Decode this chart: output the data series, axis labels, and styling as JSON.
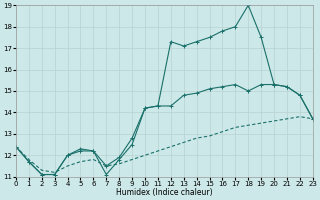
{
  "xlabel": "Humidex (Indice chaleur)",
  "bg_color": "#cce8e8",
  "grid_color": "#b8d0d0",
  "line_color": "#1a706a",
  "xlim": [
    0,
    23
  ],
  "ylim": [
    11,
    19
  ],
  "xticks": [
    0,
    1,
    2,
    3,
    4,
    5,
    6,
    7,
    8,
    9,
    10,
    11,
    12,
    13,
    14,
    15,
    16,
    17,
    18,
    19,
    20,
    21,
    22,
    23
  ],
  "yticks": [
    11,
    12,
    13,
    14,
    15,
    16,
    17,
    18,
    19
  ],
  "line_jagged_x": [
    0,
    1,
    2,
    3,
    4,
    5,
    6,
    7,
    8,
    9,
    10,
    11,
    12,
    13,
    14,
    15,
    16,
    17,
    18,
    19,
    20,
    21,
    22,
    23
  ],
  "line_jagged_y": [
    12.4,
    11.7,
    11.1,
    11.1,
    12.0,
    12.3,
    12.2,
    11.1,
    11.8,
    12.5,
    14.2,
    14.3,
    17.3,
    17.1,
    17.3,
    17.5,
    17.8,
    18.0,
    19.0,
    17.5,
    15.3,
    15.2,
    14.8,
    13.7
  ],
  "line_mid_x": [
    0,
    1,
    2,
    3,
    4,
    5,
    6,
    7,
    8,
    9,
    10,
    11,
    12,
    13,
    14,
    15,
    16,
    17,
    18,
    19,
    20,
    21,
    22,
    23
  ],
  "line_mid_y": [
    12.4,
    11.7,
    11.1,
    11.1,
    12.0,
    12.2,
    12.2,
    11.5,
    11.9,
    12.8,
    14.2,
    14.3,
    14.3,
    14.8,
    14.9,
    15.1,
    15.2,
    15.3,
    15.0,
    15.3,
    15.3,
    15.2,
    14.8,
    13.7
  ],
  "line_lower_x": [
    0,
    1,
    2,
    3,
    4,
    5,
    6,
    7,
    8,
    9,
    10,
    11,
    12,
    13,
    14,
    15,
    16,
    17,
    18,
    19,
    20,
    21,
    22,
    23
  ],
  "line_lower_y": [
    12.4,
    11.8,
    11.3,
    11.2,
    11.5,
    11.7,
    11.8,
    11.5,
    11.6,
    11.8,
    12.0,
    12.2,
    12.4,
    12.6,
    12.8,
    12.9,
    13.1,
    13.3,
    13.4,
    13.5,
    13.6,
    13.7,
    13.8,
    13.7
  ]
}
